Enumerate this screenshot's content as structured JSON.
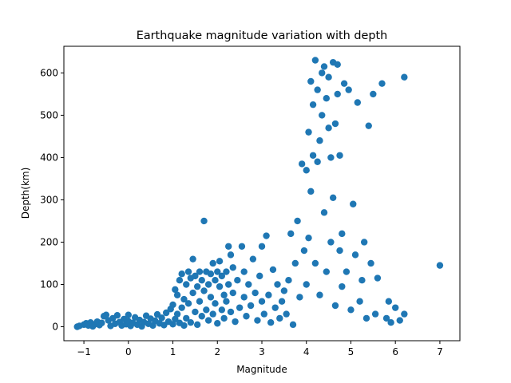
{
  "chart_data": {
    "type": "scatter",
    "title": "Earthquake magnitude variation with depth",
    "xlabel": "Magnitude",
    "ylabel": "Depth(km)",
    "xlim": [
      -1.45,
      7.45
    ],
    "ylim": [
      -33,
      663
    ],
    "xticks": [
      -1,
      0,
      1,
      2,
      3,
      4,
      5,
      6,
      7
    ],
    "yticks": [
      0,
      100,
      200,
      300,
      400,
      500,
      600
    ],
    "grid": false,
    "legend": "none",
    "marker_color": "#1f77b4",
    "series": [
      {
        "points": [
          [
            -1.15,
            0
          ],
          [
            -1.1,
            2
          ],
          [
            -1.0,
            5
          ],
          [
            -0.95,
            8
          ],
          [
            -0.9,
            3
          ],
          [
            -0.85,
            10
          ],
          [
            -0.8,
            1
          ],
          [
            -0.75,
            6
          ],
          [
            -0.7,
            12
          ],
          [
            -0.65,
            4
          ],
          [
            -0.6,
            9
          ],
          [
            -0.55,
            25
          ],
          [
            -0.5,
            28
          ],
          [
            -0.45,
            15
          ],
          [
            -0.4,
            2
          ],
          [
            -0.35,
            20
          ],
          [
            -0.3,
            7
          ],
          [
            -0.25,
            27
          ],
          [
            -0.2,
            11
          ],
          [
            -0.15,
            3
          ],
          [
            -0.1,
            18
          ],
          [
            -0.05,
            6
          ],
          [
            0.0,
            13
          ],
          [
            0.0,
            28
          ],
          [
            0.05,
            2
          ],
          [
            0.1,
            9
          ],
          [
            0.15,
            22
          ],
          [
            0.2,
            5
          ],
          [
            0.25,
            16
          ],
          [
            0.3,
            1
          ],
          [
            0.35,
            11
          ],
          [
            0.4,
            26
          ],
          [
            0.45,
            7
          ],
          [
            0.5,
            19
          ],
          [
            0.55,
            3
          ],
          [
            0.6,
            14
          ],
          [
            0.65,
            29
          ],
          [
            0.7,
            8
          ],
          [
            0.75,
            21
          ],
          [
            0.8,
            4
          ],
          [
            0.85,
            33
          ],
          [
            0.9,
            12
          ],
          [
            0.95,
            42
          ],
          [
            1.0,
            6
          ],
          [
            1.0,
            52
          ],
          [
            1.05,
            18
          ],
          [
            1.05,
            88
          ],
          [
            1.1,
            30
          ],
          [
            1.1,
            75
          ],
          [
            1.15,
            9
          ],
          [
            1.15,
            110
          ],
          [
            1.2,
            45
          ],
          [
            1.2,
            125
          ],
          [
            1.25,
            3
          ],
          [
            1.25,
            65
          ],
          [
            1.3,
            100
          ],
          [
            1.3,
            20
          ],
          [
            1.35,
            130
          ],
          [
            1.35,
            55
          ],
          [
            1.4,
            115
          ],
          [
            1.4,
            10
          ],
          [
            1.45,
            160
          ],
          [
            1.45,
            80
          ],
          [
            1.5,
            35
          ],
          [
            1.5,
            120
          ],
          [
            1.55,
            5
          ],
          [
            1.55,
            95
          ],
          [
            1.6,
            130
          ],
          [
            1.6,
            60
          ],
          [
            1.65,
            25
          ],
          [
            1.65,
            110
          ],
          [
            1.7,
            250
          ],
          [
            1.7,
            85
          ],
          [
            1.75,
            130
          ],
          [
            1.75,
            40
          ],
          [
            1.8,
            100
          ],
          [
            1.8,
            15
          ],
          [
            1.85,
            125
          ],
          [
            1.85,
            70
          ],
          [
            1.9,
            150
          ],
          [
            1.9,
            30
          ],
          [
            1.95,
            110
          ],
          [
            1.95,
            55
          ],
          [
            2.0,
            130
          ],
          [
            2.0,
            8
          ],
          [
            2.05,
            95
          ],
          [
            2.05,
            155
          ],
          [
            2.1,
            40
          ],
          [
            2.1,
            120
          ],
          [
            2.15,
            75
          ],
          [
            2.15,
            20
          ],
          [
            2.2,
            130
          ],
          [
            2.2,
            60
          ],
          [
            2.25,
            190
          ],
          [
            2.25,
            100
          ],
          [
            2.3,
            35
          ],
          [
            2.3,
            170
          ],
          [
            2.35,
            80
          ],
          [
            2.35,
            140
          ],
          [
            2.4,
            12
          ],
          [
            2.45,
            110
          ],
          [
            2.5,
            45
          ],
          [
            2.55,
            190
          ],
          [
            2.6,
            70
          ],
          [
            2.6,
            130
          ],
          [
            2.65,
            25
          ],
          [
            2.7,
            100
          ],
          [
            2.75,
            50
          ],
          [
            2.8,
            160
          ],
          [
            2.85,
            80
          ],
          [
            2.9,
            15
          ],
          [
            2.95,
            120
          ],
          [
            3.0,
            60
          ],
          [
            3.0,
            190
          ],
          [
            3.05,
            30
          ],
          [
            3.1,
            215
          ],
          [
            3.15,
            75
          ],
          [
            3.2,
            10
          ],
          [
            3.25,
            135
          ],
          [
            3.3,
            45
          ],
          [
            3.35,
            100
          ],
          [
            3.4,
            20
          ],
          [
            3.45,
            60
          ],
          [
            3.5,
            85
          ],
          [
            3.55,
            30
          ],
          [
            3.6,
            110
          ],
          [
            3.65,
            220
          ],
          [
            3.7,
            5
          ],
          [
            3.75,
            150
          ],
          [
            3.8,
            250
          ],
          [
            3.85,
            70
          ],
          [
            3.9,
            385
          ],
          [
            3.95,
            180
          ],
          [
            4.0,
            370
          ],
          [
            4.0,
            100
          ],
          [
            4.05,
            460
          ],
          [
            4.05,
            210
          ],
          [
            4.1,
            320
          ],
          [
            4.1,
            580
          ],
          [
            4.15,
            405
          ],
          [
            4.15,
            525
          ],
          [
            4.2,
            630
          ],
          [
            4.2,
            150
          ],
          [
            4.25,
            390
          ],
          [
            4.25,
            560
          ],
          [
            4.3,
            440
          ],
          [
            4.3,
            75
          ],
          [
            4.35,
            600
          ],
          [
            4.35,
            500
          ],
          [
            4.4,
            615
          ],
          [
            4.4,
            270
          ],
          [
            4.45,
            540
          ],
          [
            4.45,
            130
          ],
          [
            4.5,
            470
          ],
          [
            4.5,
            590
          ],
          [
            4.55,
            400
          ],
          [
            4.55,
            200
          ],
          [
            4.6,
            625
          ],
          [
            4.6,
            305
          ],
          [
            4.65,
            480
          ],
          [
            4.65,
            50
          ],
          [
            4.7,
            620
          ],
          [
            4.7,
            550
          ],
          [
            4.75,
            405
          ],
          [
            4.75,
            180
          ],
          [
            4.8,
            220
          ],
          [
            4.8,
            95
          ],
          [
            4.85,
            575
          ],
          [
            4.9,
            130
          ],
          [
            4.95,
            560
          ],
          [
            5.0,
            40
          ],
          [
            5.05,
            290
          ],
          [
            5.1,
            170
          ],
          [
            5.15,
            530
          ],
          [
            5.2,
            60
          ],
          [
            5.25,
            110
          ],
          [
            5.3,
            200
          ],
          [
            5.35,
            20
          ],
          [
            5.4,
            475
          ],
          [
            5.45,
            150
          ],
          [
            5.5,
            550
          ],
          [
            5.55,
            30
          ],
          [
            5.6,
            115
          ],
          [
            5.7,
            575
          ],
          [
            5.8,
            20
          ],
          [
            5.85,
            60
          ],
          [
            5.9,
            10
          ],
          [
            6.0,
            45
          ],
          [
            6.1,
            15
          ],
          [
            6.2,
            30
          ],
          [
            6.2,
            590
          ],
          [
            7.0,
            145
          ]
        ]
      }
    ]
  }
}
